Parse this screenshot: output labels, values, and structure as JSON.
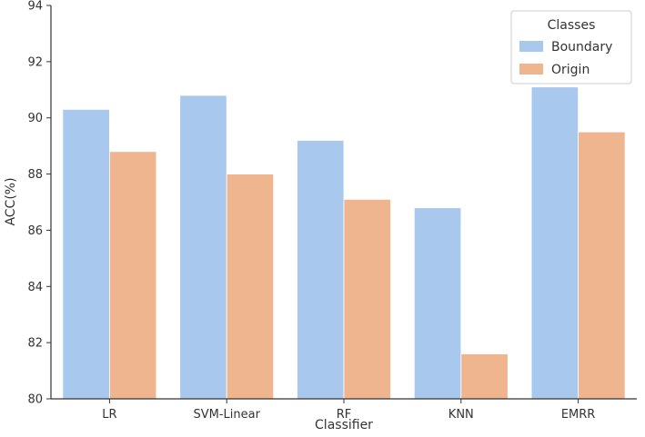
{
  "chart_data": {
    "type": "bar",
    "categories": [
      "LR",
      "SVM-Linear",
      "RF",
      "KNN",
      "EMRR"
    ],
    "series": [
      {
        "name": "Boundary",
        "values": [
          90.3,
          90.8,
          89.2,
          86.8,
          91.1
        ]
      },
      {
        "name": "Origin",
        "values": [
          88.8,
          88.0,
          87.1,
          81.6,
          89.5
        ]
      }
    ],
    "xlabel": "Classifier",
    "ylabel": "ACC(%)",
    "ylim": [
      80,
      94
    ],
    "yticks": [
      "80",
      "82",
      "84",
      "86",
      "88",
      "90",
      "92",
      "94"
    ],
    "legend": {
      "title": "Classes",
      "position": "top-right"
    },
    "grid": false
  },
  "colors": {
    "Boundary": "#a9c8ee",
    "Origin": "#efb58f",
    "axis": "#333333"
  }
}
